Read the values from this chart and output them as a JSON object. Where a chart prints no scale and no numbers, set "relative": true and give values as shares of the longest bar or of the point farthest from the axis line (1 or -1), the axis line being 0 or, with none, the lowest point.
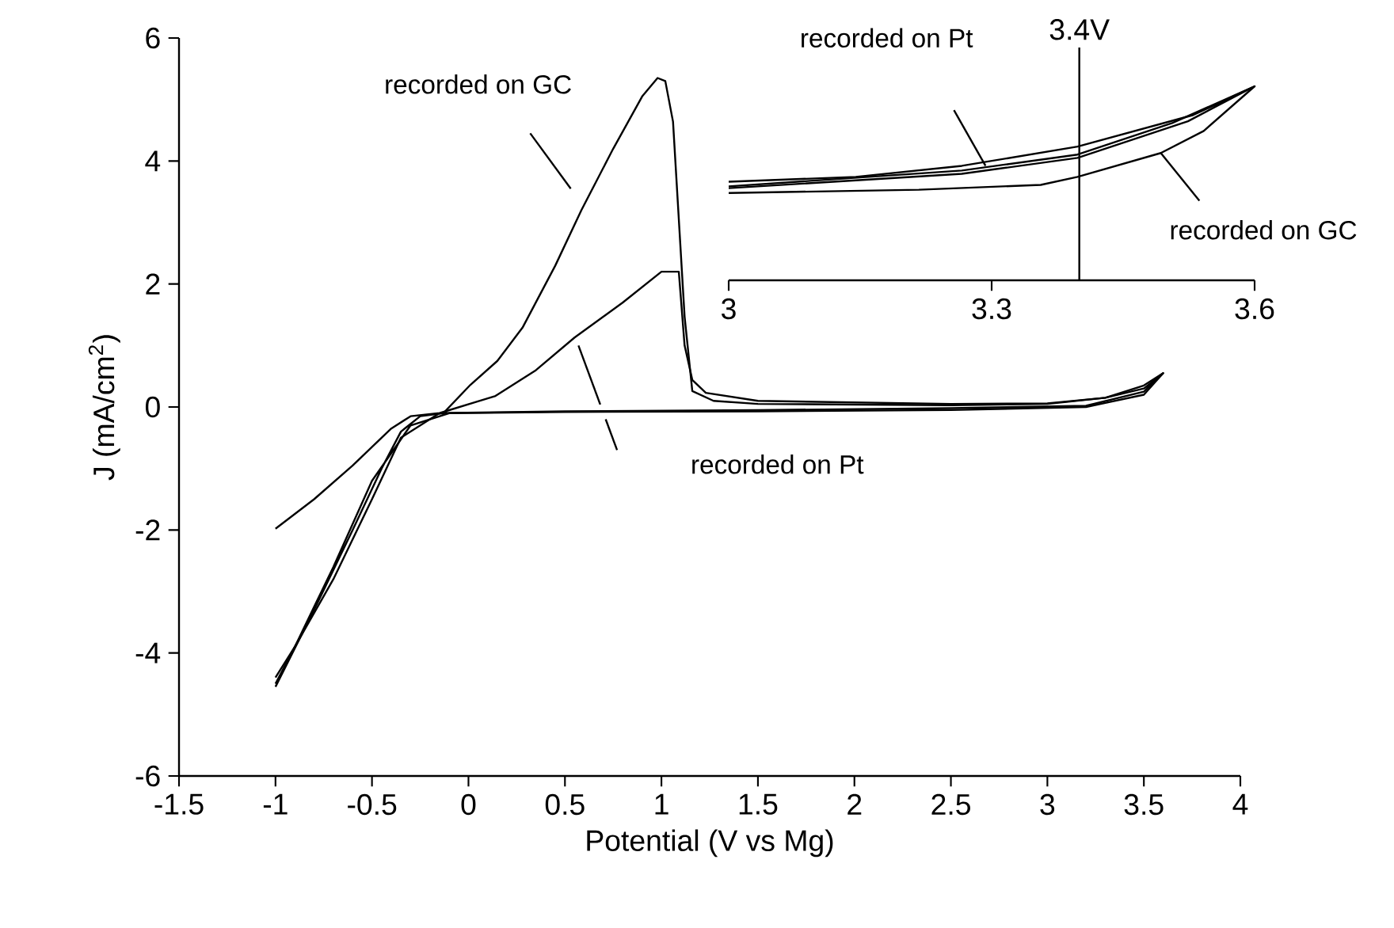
{
  "chart_data": [
    {
      "type": "line",
      "xlabel": "Potential (V vs Mg)",
      "ylabel": "J (mA/cm$^{2}$)",
      "xlim": [
        -1.5,
        4
      ],
      "ylim": [
        -6,
        6
      ],
      "xticks": [
        -1.5,
        -1,
        -0.5,
        0,
        0.5,
        1,
        1.5,
        2,
        2.5,
        3,
        3.5,
        4
      ],
      "yticks": [
        -6,
        -4,
        -2,
        0,
        2,
        4,
        6
      ],
      "series": [
        {
          "name": "recorded on GC",
          "color": "#000000",
          "x": [
            -1,
            -0.8,
            -0.6,
            -0.45,
            -0.35,
            -0.25,
            -0.13,
            0.01,
            0.15,
            0.28,
            0.45,
            0.585,
            0.75,
            0.9,
            0.98,
            1.02,
            1.06,
            1.12,
            1.16,
            1.27,
            1.5,
            2.5,
            3.0,
            3.3,
            3.5,
            3.6,
            3.5,
            3.2,
            2.5,
            1.5,
            0.5,
            -0.1,
            -0.3,
            -0.5,
            -0.7,
            -0.9,
            -1
          ],
          "values": [
            -4.55,
            -3.3,
            -2.0,
            -1.0,
            -0.4,
            -0.15,
            -0.1,
            0.36,
            0.75,
            1.29,
            2.3,
            3.2,
            4.2,
            5.05,
            5.35,
            5.3,
            4.64,
            1.47,
            0.26,
            0.1,
            0.05,
            0.03,
            0.05,
            0.15,
            0.35,
            0.55,
            0.2,
            0.0,
            -0.05,
            -0.07,
            -0.08,
            -0.1,
            -0.3,
            -1.2,
            -2.6,
            -3.9,
            -4.5
          ]
        },
        {
          "name": "recorded on Pt",
          "color": "#000000",
          "x": [
            -1,
            -0.8,
            -0.6,
            -0.4,
            -0.3,
            -0.15,
            0.14,
            0.35,
            0.55,
            0.8,
            1.0,
            1.09,
            1.12,
            1.16,
            1.23,
            1.5,
            2.5,
            3.0,
            3.3,
            3.5,
            3.6,
            3.5,
            3.2,
            2.5,
            1.5,
            0.5,
            -0.15,
            -0.35,
            -0.5,
            -0.7,
            -0.9,
            -1
          ],
          "values": [
            -1.98,
            -1.5,
            -0.95,
            -0.35,
            -0.15,
            -0.1,
            0.18,
            0.6,
            1.13,
            1.7,
            2.2,
            2.2,
            1.0,
            0.44,
            0.23,
            0.1,
            0.05,
            0.06,
            0.15,
            0.3,
            0.55,
            0.25,
            0.02,
            -0.02,
            -0.05,
            -0.07,
            -0.1,
            -0.5,
            -1.5,
            -2.8,
            -3.9,
            -4.4
          ]
        }
      ]
    },
    {
      "type": "line",
      "relative": true,
      "tick_labels": "x",
      "xlim": [
        3,
        3.6
      ],
      "xticks": [
        3,
        3.3,
        3.6
      ],
      "ref_lines": [
        {
          "axis": "x",
          "value": 3.4,
          "label": "3.4V"
        }
      ],
      "series": [
        {
          "name": "recorded on GC",
          "color": "#000000",
          "x": [
            3,
            3.217,
            3.356,
            3.398,
            3.493,
            3.542,
            3.6,
            3.506,
            3.398,
            3.266,
            3
          ],
          "values": [
            0.45,
            0.467,
            0.492,
            0.533,
            0.656,
            0.77,
            1,
            0.811,
            0.648,
            0.566,
            0.484
          ]
        },
        {
          "name": "recorded on Pt",
          "color": "#000000",
          "x": [
            3,
            3.266,
            3.398,
            3.524,
            3.6,
            3.53,
            3.398,
            3.266,
            3.145,
            3
          ],
          "values": [
            0.475,
            0.549,
            0.631,
            0.82,
            1,
            0.852,
            0.689,
            0.59,
            0.533,
            0.508
          ]
        }
      ]
    }
  ]
}
